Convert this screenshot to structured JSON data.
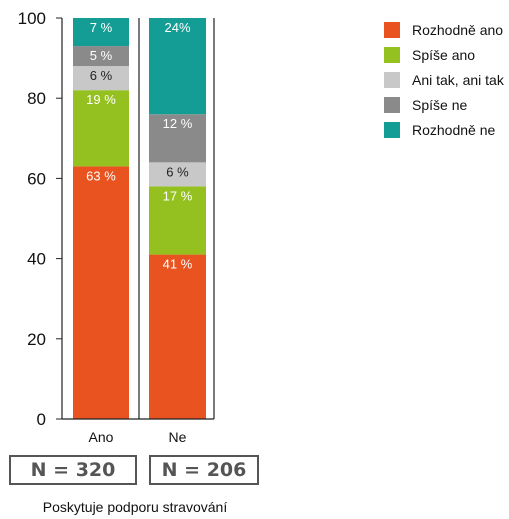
{
  "chart_data": {
    "type": "bar",
    "stacked": true,
    "categories": [
      "Ano",
      "Ne"
    ],
    "category_sizes": [
      "N = 320",
      "N = 206"
    ],
    "x_axis_title": "Poskytuje podporu stravování",
    "ylim": [
      0,
      100
    ],
    "yticks": [
      "0",
      "20",
      "40",
      "60",
      "80",
      "100"
    ],
    "legend_position": "top-right",
    "series": [
      {
        "name": "Rozhodně ano",
        "color": "#e8531f",
        "values": [
          63,
          41
        ],
        "labels": [
          "63 %",
          "41 %"
        ]
      },
      {
        "name": "Spíše ano",
        "color": "#94c11f",
        "values": [
          19,
          17
        ],
        "labels": [
          "19 %",
          "17 %"
        ]
      },
      {
        "name": "Ani tak, ani tak",
        "color": "#c8c8c8",
        "values": [
          6,
          6
        ],
        "labels": [
          "6 %",
          "6 %"
        ]
      },
      {
        "name": "Spíše ne",
        "color": "#8a8a8a",
        "values": [
          5,
          12
        ],
        "labels": [
          "5 %",
          "12 %"
        ]
      },
      {
        "name": "Rozhodně ne",
        "color": "#149d94",
        "values": [
          7,
          24
        ],
        "labels": [
          "7 %",
          "24%"
        ]
      }
    ]
  }
}
